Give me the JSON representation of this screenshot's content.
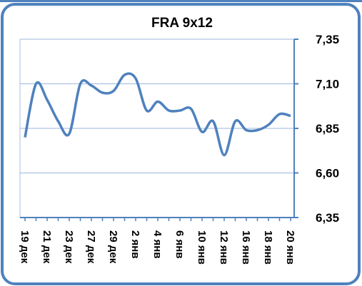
{
  "chart_data": {
    "type": "line",
    "title": "FRA 9x12",
    "categories": [
      "19 дек",
      null,
      "21 дек",
      null,
      "23 дек",
      null,
      "27 дек",
      null,
      "29 дек",
      null,
      "2 янв",
      null,
      "4 янв",
      null,
      "6 янв",
      null,
      "10 янв",
      null,
      "12 янв",
      null,
      "16 янв",
      null,
      "18 янв",
      null,
      "20 янв"
    ],
    "values": [
      6.8,
      7.1,
      7.01,
      6.89,
      6.82,
      7.1,
      7.09,
      7.05,
      7.06,
      7.15,
      7.13,
      6.95,
      7.0,
      6.95,
      6.95,
      6.96,
      6.83,
      6.89,
      6.7,
      6.89,
      6.84,
      6.84,
      6.87,
      6.93,
      6.92
    ],
    "color": "#4f81bd",
    "ylim": [
      6.35,
      7.35
    ],
    "yticks": [
      {
        "value": 6.35,
        "label": "6,35"
      },
      {
        "value": 6.6,
        "label": "6,60"
      },
      {
        "value": 6.85,
        "label": "6,85"
      },
      {
        "value": 7.1,
        "label": "7,10"
      },
      {
        "value": 7.35,
        "label": "7,35"
      }
    ],
    "grid": true
  }
}
